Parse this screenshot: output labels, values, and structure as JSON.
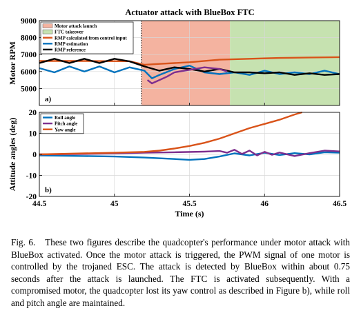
{
  "figure": {
    "caption_label": "Fig. 6.",
    "caption_text": "These two figures describe the quadcopter's performance under motor attack with BlueBox activated. Once the motor attack is triggered, the PWM signal of one motor is controlled by the trojaned ESC. The attack is detected by BlueBox within about 0.75 seconds after the attack is launched. The FTC is activated subsequently. With a compromised motor, the quadcopter lost its yaw control as described in Figure b), while roll and pitch angle are maintained."
  },
  "chart_data": [
    {
      "type": "line",
      "panel_label": "a)",
      "title": "Actuator attack with BlueBox FTC",
      "xlabel": "",
      "ylabel": "Motor RPM",
      "xlim": [
        44.5,
        46.5
      ],
      "ylim": [
        4000,
        9000
      ],
      "x_ticks": [
        44.5,
        45,
        45.5,
        46,
        46.5
      ],
      "y_ticks": [
        5000,
        6000,
        7000,
        8000,
        9000
      ],
      "y_tick_labels": [
        "5000",
        "6000",
        "7000",
        "8000",
        "9000"
      ],
      "grid": true,
      "legend_position": "top-left",
      "regions": [
        {
          "name": "Motor attack launch",
          "x_start": 45.18,
          "x_end": 45.77,
          "color": "#f4b3a0"
        },
        {
          "name": "FTC takeover",
          "x_start": 45.77,
          "x_end": 46.5,
          "color": "#c6e2b0"
        }
      ],
      "markers": [
        {
          "type": "vertical-dotted-line",
          "x": 45.18
        }
      ],
      "series": [
        {
          "name": "RMP calculated from control input",
          "color": "#d95319",
          "x": [
            44.5,
            44.8,
            45.1,
            45.2,
            45.3,
            45.5,
            45.7,
            45.9,
            46.1,
            46.3,
            46.5
          ],
          "y": [
            6620,
            6620,
            6610,
            6400,
            6450,
            6550,
            6700,
            6750,
            6800,
            6830,
            6850
          ]
        },
        {
          "name": "RMP estimation",
          "color": "#0072bd",
          "x": [
            44.5,
            44.6,
            44.7,
            44.8,
            44.9,
            45.0,
            45.1,
            45.2,
            45.25,
            45.3,
            45.4,
            45.5,
            45.6,
            45.7,
            45.8,
            45.9,
            46.0,
            46.1,
            46.2,
            46.3,
            46.4,
            46.5
          ],
          "y": [
            6200,
            5950,
            6300,
            6000,
            6300,
            5950,
            6250,
            6050,
            5600,
            5800,
            6150,
            6350,
            5950,
            5850,
            5950,
            5800,
            6050,
            5850,
            5950,
            5850,
            6050,
            5850
          ]
        },
        {
          "name": "RMP reference",
          "color": "#000000",
          "x": [
            44.5,
            44.6,
            44.7,
            44.8,
            44.9,
            45.0,
            45.1,
            45.2,
            45.3,
            45.4,
            45.5,
            45.6,
            45.7,
            45.8,
            45.9,
            46.0,
            46.1,
            46.2,
            46.3,
            46.4,
            46.5
          ],
          "y": [
            6500,
            6750,
            6500,
            6750,
            6500,
            6750,
            6600,
            6300,
            6050,
            6250,
            6150,
            6000,
            6150,
            5950,
            5950,
            5900,
            5950,
            5800,
            5900,
            5800,
            5850
          ]
        },
        {
          "name": "",
          "color": "#7e2f8e",
          "x": [
            45.22,
            45.25,
            45.3,
            45.35,
            45.4,
            45.5,
            45.6,
            45.7,
            45.75
          ],
          "y": [
            5500,
            5300,
            5500,
            5700,
            5950,
            6100,
            6250,
            6150,
            6000
          ]
        }
      ]
    },
    {
      "type": "line",
      "panel_label": "b)",
      "title": "",
      "xlabel": "Time (s)",
      "ylabel": "Attitude angles (deg)",
      "xlim": [
        44.5,
        46.5
      ],
      "ylim": [
        -20,
        20
      ],
      "x_ticks": [
        44.5,
        45,
        45.5,
        46,
        46.5
      ],
      "x_tick_labels": [
        "44.5",
        "45",
        "45.5",
        "46",
        "46.5"
      ],
      "y_ticks": [
        -20,
        -10,
        0,
        10,
        20
      ],
      "y_tick_labels": [
        "-20",
        "-10",
        "0",
        "10",
        "20"
      ],
      "grid": true,
      "legend_position": "top-left",
      "series": [
        {
          "name": "Roll angle",
          "color": "#0072bd",
          "x": [
            44.5,
            44.8,
            45.0,
            45.2,
            45.4,
            45.5,
            45.6,
            45.7,
            45.8,
            45.9,
            46.0,
            46.1,
            46.2,
            46.3,
            46.4,
            46.5
          ],
          "y": [
            -0.5,
            -0.8,
            -1.0,
            -1.5,
            -2.2,
            -2.6,
            -2.2,
            -1.0,
            0.5,
            -0.5,
            0.8,
            -0.3,
            0.6,
            0.0,
            1.0,
            0.8
          ]
        },
        {
          "name": "Pitch angle",
          "color": "#7e2f8e",
          "x": [
            44.5,
            44.8,
            45.0,
            45.2,
            45.4,
            45.6,
            45.7,
            45.75,
            45.8,
            45.85,
            45.9,
            45.95,
            46.0,
            46.05,
            46.1,
            46.2,
            46.3,
            46.4,
            46.5
          ],
          "y": [
            0.0,
            0.2,
            0.5,
            0.8,
            1.0,
            1.3,
            1.6,
            0.8,
            2.2,
            0.2,
            1.8,
            -0.5,
            1.2,
            -0.2,
            0.9,
            -0.8,
            0.6,
            1.8,
            1.4
          ]
        },
        {
          "name": "Yaw angle",
          "color": "#d95319",
          "x": [
            44.5,
            44.8,
            45.0,
            45.2,
            45.3,
            45.4,
            45.5,
            45.6,
            45.7,
            45.8,
            45.9,
            46.0,
            46.1,
            46.2,
            46.25
          ],
          "y": [
            0.0,
            0.5,
            0.8,
            1.2,
            1.8,
            2.8,
            4.0,
            5.5,
            7.5,
            10.0,
            12.5,
            14.5,
            16.5,
            19.0,
            20.0
          ]
        }
      ]
    }
  ]
}
